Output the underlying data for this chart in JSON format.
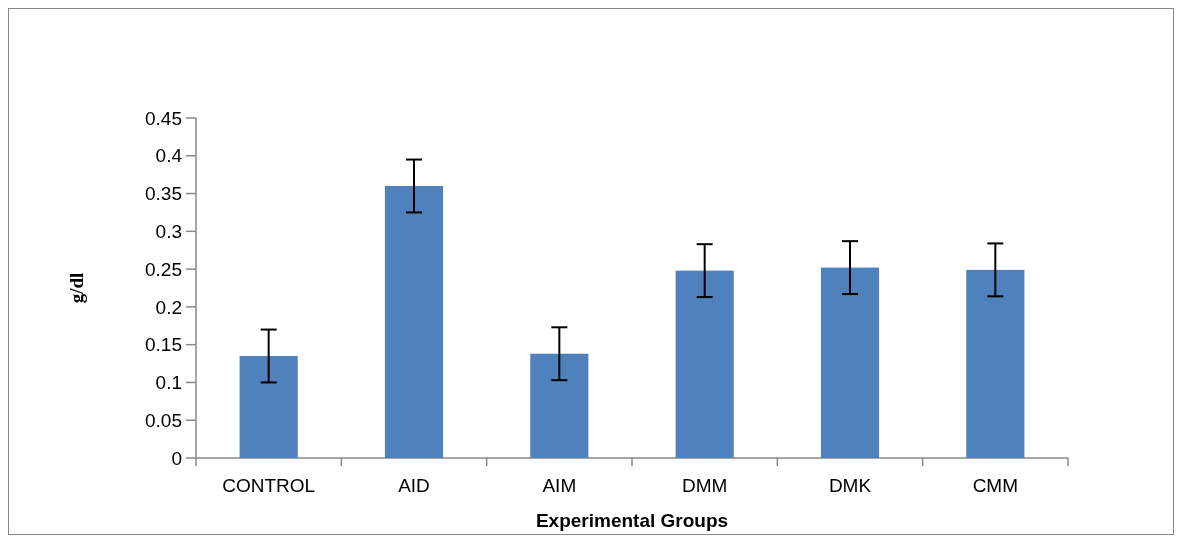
{
  "chart_data": {
    "type": "bar",
    "xlabel": "Experimental Groups",
    "ylabel": "g/dl",
    "categories": [
      "CONTROL",
      "AID",
      "AIM",
      "DMM",
      "DMK",
      "CMM"
    ],
    "values": [
      0.135,
      0.36,
      0.138,
      0.248,
      0.252,
      0.249
    ],
    "errors": [
      0.035,
      0.035,
      0.035,
      0.035,
      0.035,
      0.035
    ],
    "color": "#4f81bd",
    "ylim": [
      0,
      0.45
    ],
    "yticks": [
      0,
      0.05,
      0.1,
      0.15,
      0.2,
      0.25,
      0.3,
      0.35,
      0.4,
      0.45
    ],
    "grid": false
  }
}
